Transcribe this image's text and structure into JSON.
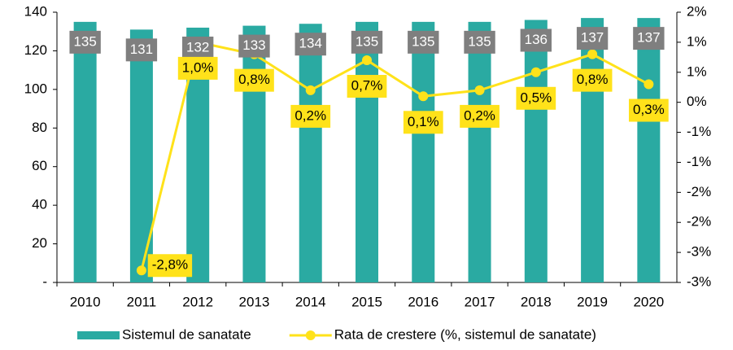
{
  "chart_data": {
    "type": "combo",
    "categories": [
      "2010",
      "2011",
      "2012",
      "2013",
      "2014",
      "2015",
      "2016",
      "2017",
      "2018",
      "2019",
      "2020"
    ],
    "series": [
      {
        "name": "Sistemul de sanatate",
        "type": "bar",
        "color": "#2aaaa2",
        "values": [
          135,
          131,
          132,
          133,
          134,
          135,
          135,
          135,
          136,
          137,
          137
        ]
      },
      {
        "name": "Rata de crestere (%, sistemul de sanatate)",
        "type": "line",
        "axis": "y2",
        "color": "#ffe21a",
        "values": [
          null,
          -2.8,
          1.0,
          0.8,
          0.2,
          0.7,
          0.1,
          0.2,
          0.5,
          0.8,
          0.3
        ],
        "value_labels": [
          null,
          "-2,8%",
          "1,0%",
          "0,8%",
          "0,2%",
          "0,7%",
          "0,1%",
          "0,2%",
          "0,5%",
          "0,8%",
          "0,3%"
        ]
      }
    ],
    "ylim": [
      0,
      140
    ],
    "yticks": [
      {
        "value": 0,
        "label": "-"
      },
      20,
      40,
      60,
      80,
      100,
      120,
      140
    ],
    "y2lim": [
      -3,
      1.5
    ],
    "y2ticks": [
      {
        "value": -3,
        "label": "-3%"
      },
      {
        "value": -2.5,
        "label": "-3%"
      },
      {
        "value": -2,
        "label": "-2%"
      },
      {
        "value": -1.5,
        "label": "-2%"
      },
      {
        "value": -1,
        "label": "-1%"
      },
      {
        "value": -0.5,
        "label": "-1%"
      },
      {
        "value": 0,
        "label": "0%"
      },
      {
        "value": 0.5,
        "label": "1%"
      },
      {
        "value": 1,
        "label": "1%"
      },
      {
        "value": 1.5,
        "label": "2%"
      }
    ],
    "grid": false,
    "legend": "bottom"
  }
}
